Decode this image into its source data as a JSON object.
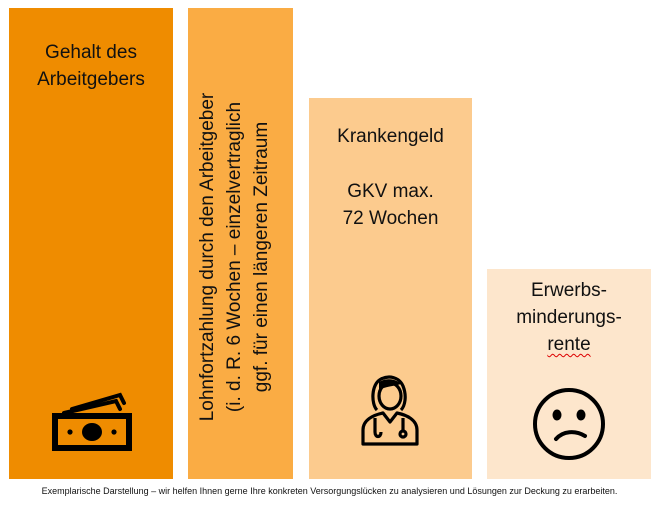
{
  "bars": [
    {
      "lines": [
        "Gehalt des",
        "Arbeitgebers"
      ],
      "icon": "money-icon",
      "color": "#ef8c00"
    },
    {
      "lines": [
        "Lohnfortzahlung durch den Arbeitgeber",
        "(i. d. R. 6 Wochen – einzelvertraglich",
        "ggf. für einen längeren Zeitraum"
      ],
      "color": "#faac44"
    },
    {
      "lines": [
        "Krankengeld"
      ],
      "sublines": [
        "GKV max.",
        "72 Wochen"
      ],
      "icon": "doctor-icon",
      "color": "#fccb8e"
    },
    {
      "lines": [
        "Erwerbs-",
        "minderungs-",
        "rente"
      ],
      "icon": "sad-face-icon",
      "color": "#fde6cc"
    }
  ],
  "footnote": "Exemplarische Darstellung – wir helfen Ihnen gerne Ihre konkreten Versorgungslücken zu analysieren und Lösungen zur Deckung zu erarbeiten."
}
